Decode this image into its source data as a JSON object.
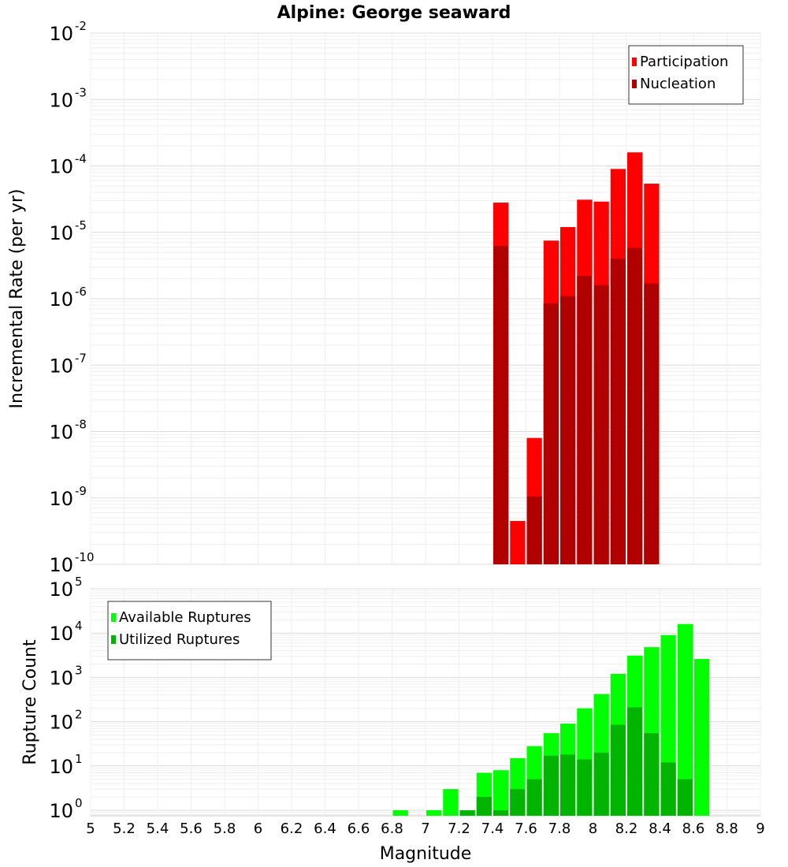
{
  "chart_data": [
    {
      "type": "bar",
      "title": "Alpine: George seaward",
      "ylabel": "Incremental Rate (per yr)",
      "xlabel": "",
      "yscale": "log",
      "ylim": [
        1e-10,
        0.01
      ],
      "xlim": [
        5,
        9
      ],
      "bin_width": 0.1,
      "y_tick_exponents": [
        "-2",
        "-3",
        "-4",
        "-5",
        "-6",
        "-7",
        "-8",
        "-9",
        "-10"
      ],
      "legend_position": "top-right",
      "grid": true,
      "series": [
        {
          "name": "Participation",
          "color": "#ff0000",
          "points": [
            {
              "x": 7.45,
              "y": 2.8e-05
            },
            {
              "x": 7.55,
              "y": 4.5e-10
            },
            {
              "x": 7.65,
              "y": 8e-09
            },
            {
              "x": 7.75,
              "y": 7.5e-06
            },
            {
              "x": 7.85,
              "y": 1.2e-05
            },
            {
              "x": 7.95,
              "y": 3.1e-05
            },
            {
              "x": 8.05,
              "y": 2.9e-05
            },
            {
              "x": 8.15,
              "y": 9e-05
            },
            {
              "x": 8.25,
              "y": 0.00016
            },
            {
              "x": 8.35,
              "y": 5.4e-05
            }
          ]
        },
        {
          "name": "Nucleation",
          "color": "#b00000",
          "points": [
            {
              "x": 7.45,
              "y": 6.2e-06
            },
            {
              "x": 7.65,
              "y": 1.05e-09
            },
            {
              "x": 7.75,
              "y": 8.5e-07
            },
            {
              "x": 7.85,
              "y": 1.1e-06
            },
            {
              "x": 7.95,
              "y": 2.2e-06
            },
            {
              "x": 8.05,
              "y": 1.6e-06
            },
            {
              "x": 8.15,
              "y": 4e-06
            },
            {
              "x": 8.25,
              "y": 5.8e-06
            },
            {
              "x": 8.35,
              "y": 1.7e-06
            }
          ]
        }
      ]
    },
    {
      "type": "bar",
      "title": "",
      "ylabel": "Rupture Count",
      "xlabel": "Magnitude",
      "yscale": "log",
      "ylim": [
        0.75,
        100000.0
      ],
      "xlim": [
        5,
        9
      ],
      "bin_width": 0.1,
      "y_tick_exponents": [
        "5",
        "4",
        "3",
        "2",
        "1",
        "0"
      ],
      "x_tick_labels": [
        "5",
        "5.2",
        "5.4",
        "5.6",
        "5.8",
        "6",
        "6.2",
        "6.4",
        "6.6",
        "6.8",
        "7",
        "7.2",
        "7.4",
        "7.6",
        "7.8",
        "8",
        "8.2",
        "8.4",
        "8.6",
        "8.8",
        "9"
      ],
      "legend_position": "top-left",
      "grid": true,
      "series": [
        {
          "name": "Available Ruptures",
          "color": "#00ff00",
          "points": [
            {
              "x": 6.85,
              "y": 1
            },
            {
              "x": 7.05,
              "y": 1
            },
            {
              "x": 7.15,
              "y": 3
            },
            {
              "x": 7.25,
              "y": 1
            },
            {
              "x": 7.35,
              "y": 7
            },
            {
              "x": 7.45,
              "y": 8
            },
            {
              "x": 7.55,
              "y": 15
            },
            {
              "x": 7.65,
              "y": 28
            },
            {
              "x": 7.75,
              "y": 55
            },
            {
              "x": 7.85,
              "y": 90
            },
            {
              "x": 7.95,
              "y": 200
            },
            {
              "x": 8.05,
              "y": 420
            },
            {
              "x": 8.15,
              "y": 1200
            },
            {
              "x": 8.25,
              "y": 3100
            },
            {
              "x": 8.35,
              "y": 4800
            },
            {
              "x": 8.45,
              "y": 9000
            },
            {
              "x": 8.55,
              "y": 16000
            },
            {
              "x": 8.65,
              "y": 2600
            }
          ]
        },
        {
          "name": "Utilized Ruptures",
          "color": "#00b400",
          "points": [
            {
              "x": 7.25,
              "y": 1
            },
            {
              "x": 7.35,
              "y": 2
            },
            {
              "x": 7.45,
              "y": 1
            },
            {
              "x": 7.55,
              "y": 3
            },
            {
              "x": 7.65,
              "y": 5
            },
            {
              "x": 7.75,
              "y": 17
            },
            {
              "x": 7.85,
              "y": 18
            },
            {
              "x": 7.95,
              "y": 14
            },
            {
              "x": 8.05,
              "y": 20
            },
            {
              "x": 8.15,
              "y": 85
            },
            {
              "x": 8.25,
              "y": 210
            },
            {
              "x": 8.35,
              "y": 55
            },
            {
              "x": 8.45,
              "y": 12
            },
            {
              "x": 8.55,
              "y": 5
            }
          ]
        }
      ]
    }
  ]
}
